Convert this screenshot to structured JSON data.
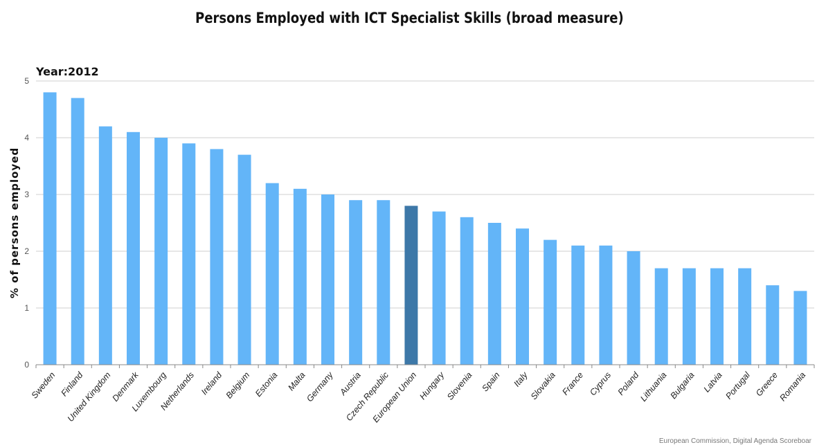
{
  "chart_data": {
    "type": "bar",
    "title": "Persons Employed with ICT Specialist Skills (broad measure)",
    "subtitle": "Year:2012",
    "ylabel": "% of persons employed",
    "xlabel": "",
    "ylim": [
      0,
      5
    ],
    "yticks": [
      "0",
      "1",
      "2",
      "3",
      "4",
      "5"
    ],
    "grid": true,
    "categories": [
      "Sweden",
      "Finland",
      "United Kingdom",
      "Denmark",
      "Luxembourg",
      "Netherlands",
      "Ireland",
      "Belgium",
      "Estonia",
      "Malta",
      "Germany",
      "Austria",
      "Czech Republic",
      "European Union",
      "Hungary",
      "Slovenia",
      "Spain",
      "Italy",
      "Slovakia",
      "France",
      "Cyprus",
      "Poland",
      "Lithuania",
      "Bulgaria",
      "Latvia",
      "Portugal",
      "Greece",
      "Romania"
    ],
    "values": [
      4.8,
      4.7,
      4.2,
      4.1,
      4.0,
      3.9,
      3.8,
      3.7,
      3.2,
      3.1,
      3.0,
      2.9,
      2.9,
      2.8,
      2.7,
      2.6,
      2.5,
      2.4,
      2.2,
      2.1,
      2.1,
      2.0,
      1.7,
      1.7,
      1.7,
      1.7,
      1.4,
      1.3
    ],
    "highlight": "European Union",
    "colors": {
      "bar": "#63b5f8",
      "highlight": "#3d78a8",
      "grid": "#cfcfcf",
      "axis": "#888888"
    }
  },
  "source": "European Commission, Digital Agenda Scoreboar"
}
